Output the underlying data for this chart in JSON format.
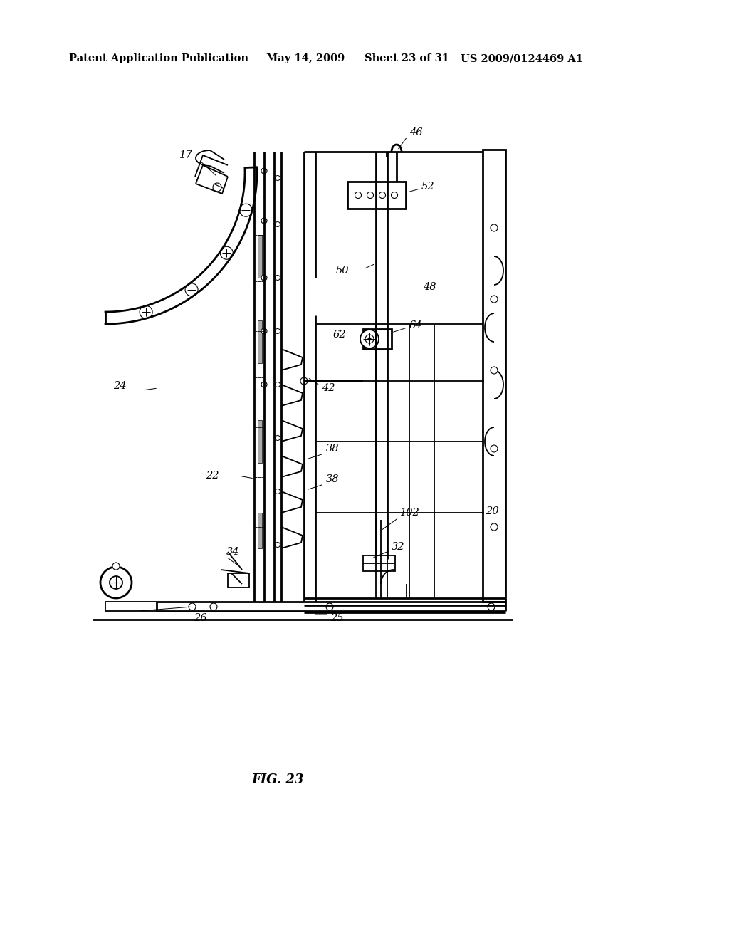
{
  "bg_color": "#ffffff",
  "line_color": "#000000",
  "title_line1": "Patent Application Publication",
  "title_date": "May 14, 2009",
  "title_sheet": "Sheet 23 of 31",
  "title_patent": "US 2009/0124469 A1",
  "fig_label": "FIG. 23"
}
